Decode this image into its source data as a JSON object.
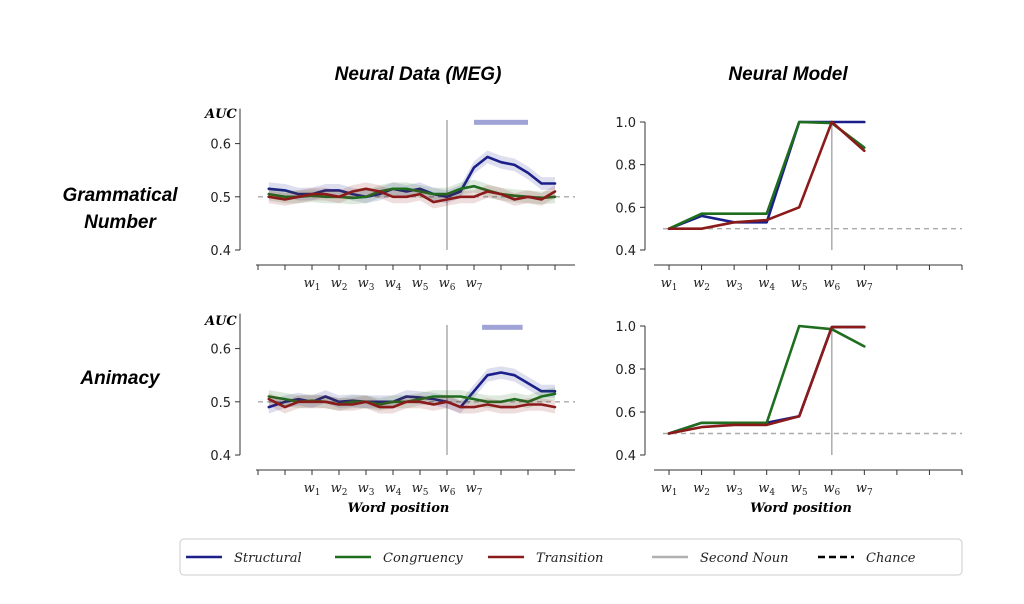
{
  "column_titles": [
    "Neural Data (MEG)",
    "Neural Model"
  ],
  "row_labels": [
    [
      "Grammatical",
      "Number"
    ],
    [
      "Animacy"
    ]
  ],
  "legend": {
    "items": [
      {
        "label": "Structural",
        "color": "#1b1f8a",
        "style": "solid"
      },
      {
        "label": "Congruency",
        "color": "#1f6e1f",
        "style": "solid"
      },
      {
        "label": "Transition",
        "color": "#8b1a1a",
        "style": "solid"
      },
      {
        "label": "Second Noun",
        "color": "#b0b0b0",
        "style": "solid"
      },
      {
        "label": "Chance",
        "color": "#000000",
        "style": "dashed"
      }
    ]
  },
  "colors": {
    "structural": "#1b1f8a",
    "congruency": "#1f6e1f",
    "transition": "#8b1a1a",
    "second_noun": "#b0b0b0",
    "chance": "#aaaaaa",
    "significance_bar": "#9fa3d6"
  },
  "chart_data": [
    {
      "type": "line",
      "panel": "MEG - Grammatical Number",
      "ylabel": "AUC",
      "xlabel": "",
      "ylim": [
        0.4,
        0.65
      ],
      "xlim": [
        0,
        11
      ],
      "yticks": [
        0.4,
        0.5,
        0.6
      ],
      "xticks": [
        {
          "x": 2,
          "w": "w",
          "sub": "1"
        },
        {
          "x": 3,
          "w": "w",
          "sub": "2"
        },
        {
          "x": 4,
          "w": "w",
          "sub": "3"
        },
        {
          "x": 5,
          "w": "w",
          "sub": "4"
        },
        {
          "x": 6,
          "w": "w",
          "sub": "5"
        },
        {
          "x": 7,
          "w": "w",
          "sub": "6"
        },
        {
          "x": 8,
          "w": "w",
          "sub": "7"
        }
      ],
      "chance": 0.5,
      "second_noun_x": 7,
      "significance": [
        {
          "x_start": 8.0,
          "x_end": 10.0,
          "y": 0.64
        }
      ],
      "series": [
        {
          "key": "structural",
          "x": [
            0.4,
            1,
            1.5,
            2,
            2.5,
            3,
            3.5,
            4,
            4.5,
            5,
            5.5,
            6,
            6.5,
            7,
            7.5,
            8,
            8.5,
            9,
            9.5,
            10,
            10.5,
            11
          ],
          "y": [
            0.515,
            0.512,
            0.505,
            0.505,
            0.512,
            0.512,
            0.505,
            0.5,
            0.505,
            0.515,
            0.51,
            0.515,
            0.505,
            0.5,
            0.51,
            0.555,
            0.575,
            0.565,
            0.56,
            0.545,
            0.525,
            0.525
          ]
        },
        {
          "key": "congruency",
          "x": [
            0.4,
            1,
            1.5,
            2,
            2.5,
            3,
            3.5,
            4,
            4.5,
            5,
            5.5,
            6,
            6.5,
            7,
            7.5,
            8,
            8.5,
            9,
            9.5,
            10,
            10.5,
            11
          ],
          "y": [
            0.505,
            0.5,
            0.5,
            0.502,
            0.5,
            0.5,
            0.498,
            0.5,
            0.51,
            0.515,
            0.515,
            0.51,
            0.505,
            0.505,
            0.515,
            0.52,
            0.512,
            0.505,
            0.502,
            0.5,
            0.498,
            0.5
          ]
        },
        {
          "key": "transition",
          "x": [
            0.4,
            1,
            1.5,
            2,
            2.5,
            3,
            3.5,
            4,
            4.5,
            5,
            5.5,
            6,
            6.5,
            7,
            7.5,
            8,
            8.5,
            9,
            9.5,
            10,
            10.5,
            11
          ],
          "y": [
            0.5,
            0.495,
            0.5,
            0.505,
            0.505,
            0.5,
            0.51,
            0.515,
            0.51,
            0.5,
            0.5,
            0.505,
            0.49,
            0.495,
            0.5,
            0.5,
            0.51,
            0.505,
            0.495,
            0.5,
            0.495,
            0.51
          ]
        }
      ]
    },
    {
      "type": "line",
      "panel": "Model - Grammatical Number",
      "ylabel": "",
      "xlabel": "",
      "ylim": [
        0.4,
        1.0
      ],
      "xlim": [
        0.6,
        10
      ],
      "yticks": [
        0.4,
        0.6,
        0.8,
        1.0
      ],
      "xticks": [
        {
          "x": 1,
          "w": "w",
          "sub": "1"
        },
        {
          "x": 2,
          "w": "w",
          "sub": "2"
        },
        {
          "x": 3,
          "w": "w",
          "sub": "3"
        },
        {
          "x": 4,
          "w": "w",
          "sub": "4"
        },
        {
          "x": 5,
          "w": "w",
          "sub": "5"
        },
        {
          "x": 6,
          "w": "w",
          "sub": "6"
        },
        {
          "x": 7,
          "w": "w",
          "sub": "7"
        }
      ],
      "chance": 0.5,
      "second_noun_x": 6,
      "series": [
        {
          "key": "structural",
          "x": [
            1,
            2,
            3,
            4,
            5,
            6,
            7
          ],
          "y": [
            0.5,
            0.56,
            0.53,
            0.53,
            1.0,
            1.0,
            1.0
          ]
        },
        {
          "key": "congruency",
          "x": [
            1,
            2,
            3,
            4,
            5,
            6,
            7
          ],
          "y": [
            0.5,
            0.57,
            0.57,
            0.57,
            1.0,
            0.995,
            0.88
          ]
        },
        {
          "key": "transition",
          "x": [
            1,
            2,
            3,
            4,
            5,
            6,
            7
          ],
          "y": [
            0.5,
            0.5,
            0.53,
            0.54,
            0.6,
            1.0,
            0.865
          ]
        }
      ]
    },
    {
      "type": "line",
      "panel": "MEG - Animacy",
      "ylabel": "AUC",
      "xlabel": "Word position",
      "ylim": [
        0.4,
        0.65
      ],
      "xlim": [
        0,
        11
      ],
      "yticks": [
        0.4,
        0.5,
        0.6
      ],
      "xticks": [
        {
          "x": 2,
          "w": "w",
          "sub": "1"
        },
        {
          "x": 3,
          "w": "w",
          "sub": "2"
        },
        {
          "x": 4,
          "w": "w",
          "sub": "3"
        },
        {
          "x": 5,
          "w": "w",
          "sub": "4"
        },
        {
          "x": 6,
          "w": "w",
          "sub": "5"
        },
        {
          "x": 7,
          "w": "w",
          "sub": "6"
        },
        {
          "x": 8,
          "w": "w",
          "sub": "7"
        }
      ],
      "chance": 0.5,
      "second_noun_x": 7,
      "significance": [
        {
          "x_start": 8.3,
          "x_end": 9.8,
          "y": 0.64
        }
      ],
      "series": [
        {
          "key": "structural",
          "x": [
            0.4,
            1,
            1.5,
            2,
            2.5,
            3,
            3.5,
            4,
            4.5,
            5,
            5.5,
            6,
            6.5,
            7,
            7.5,
            8,
            8.5,
            9,
            9.5,
            10,
            10.5,
            11
          ],
          "y": [
            0.49,
            0.5,
            0.505,
            0.5,
            0.51,
            0.5,
            0.502,
            0.5,
            0.5,
            0.5,
            0.51,
            0.508,
            0.505,
            0.5,
            0.49,
            0.52,
            0.55,
            0.555,
            0.55,
            0.535,
            0.52,
            0.52
          ]
        },
        {
          "key": "congruency",
          "x": [
            0.4,
            1,
            1.5,
            2,
            2.5,
            3,
            3.5,
            4,
            4.5,
            5,
            5.5,
            6,
            6.5,
            7,
            7.5,
            8,
            8.5,
            9,
            9.5,
            10,
            10.5,
            11
          ],
          "y": [
            0.51,
            0.505,
            0.5,
            0.502,
            0.5,
            0.495,
            0.5,
            0.5,
            0.495,
            0.5,
            0.5,
            0.505,
            0.51,
            0.51,
            0.51,
            0.505,
            0.5,
            0.5,
            0.505,
            0.5,
            0.51,
            0.515
          ]
        },
        {
          "key": "transition",
          "x": [
            0.4,
            1,
            1.5,
            2,
            2.5,
            3,
            3.5,
            4,
            4.5,
            5,
            5.5,
            6,
            6.5,
            7,
            7.5,
            8,
            8.5,
            9,
            9.5,
            10,
            10.5,
            11
          ],
          "y": [
            0.505,
            0.49,
            0.5,
            0.5,
            0.5,
            0.495,
            0.495,
            0.5,
            0.49,
            0.49,
            0.5,
            0.5,
            0.495,
            0.5,
            0.49,
            0.49,
            0.495,
            0.49,
            0.49,
            0.495,
            0.495,
            0.49
          ]
        }
      ]
    },
    {
      "type": "line",
      "panel": "Model - Animacy",
      "ylabel": "",
      "xlabel": "Word position",
      "ylim": [
        0.4,
        1.0
      ],
      "xlim": [
        0.6,
        10
      ],
      "yticks": [
        0.4,
        0.6,
        0.8,
        1.0
      ],
      "xticks": [
        {
          "x": 1,
          "w": "w",
          "sub": "1"
        },
        {
          "x": 2,
          "w": "w",
          "sub": "2"
        },
        {
          "x": 3,
          "w": "w",
          "sub": "3"
        },
        {
          "x": 4,
          "w": "w",
          "sub": "4"
        },
        {
          "x": 5,
          "w": "w",
          "sub": "5"
        },
        {
          "x": 6,
          "w": "w",
          "sub": "6"
        },
        {
          "x": 7,
          "w": "w",
          "sub": "7"
        }
      ],
      "chance": 0.5,
      "second_noun_x": 6,
      "series": [
        {
          "key": "structural",
          "x": [
            1,
            2,
            3,
            4,
            5,
            6,
            7
          ],
          "y": [
            0.5,
            0.55,
            0.55,
            0.55,
            0.58,
            0.995,
            0.995
          ]
        },
        {
          "key": "congruency",
          "x": [
            1,
            2,
            3,
            4,
            5,
            6,
            7
          ],
          "y": [
            0.5,
            0.55,
            0.55,
            0.55,
            1.0,
            0.985,
            0.905
          ]
        },
        {
          "key": "transition",
          "x": [
            1,
            2,
            3,
            4,
            5,
            6,
            7
          ],
          "y": [
            0.5,
            0.53,
            0.54,
            0.54,
            0.58,
            0.995,
            0.995
          ]
        }
      ]
    }
  ]
}
